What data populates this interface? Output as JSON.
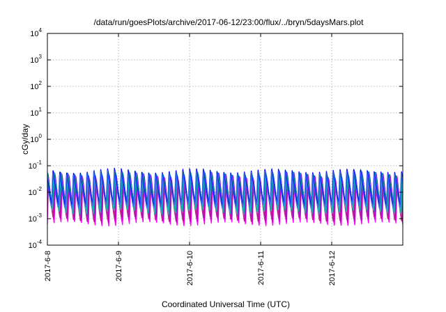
{
  "chart_data": {
    "type": "line",
    "title": "/data/run/goesPlots/archive/2017-06-12/23:00/flux/../bryn/5daysMars.plot",
    "xlabel": "Coordinated Universal Time (UTC)",
    "ylabel": "cGy/day",
    "y_scale": "log",
    "ylim_exponents": [
      -4,
      4
    ],
    "y_tick_exponents": [
      -4,
      -3,
      -2,
      -1,
      0,
      1,
      2,
      3,
      4
    ],
    "y_tick_base": "10",
    "x_tick_labels": [
      "2017-6-8",
      "2017-6-9",
      "2017-6-10",
      "2017-6-11",
      "2017-6-12"
    ],
    "x_tick_days": [
      0,
      1,
      2,
      3,
      4
    ],
    "xlim_days": [
      0,
      5
    ],
    "grid": true,
    "pattern": {
      "cycles_per_day": 10.4,
      "description_peak_low_by_series": true
    },
    "series": [
      {
        "color": "#ff00ff",
        "peak": 0.035,
        "low": 0.0006
      },
      {
        "color": "#cc00cc",
        "peak": 0.04,
        "low": 0.0008
      },
      {
        "color": "#9400d3",
        "peak": 0.045,
        "low": 0.001
      },
      {
        "color": "#7b2fbe",
        "peak": 0.05,
        "low": 0.0013
      },
      {
        "color": "#c0209a",
        "peak": 0.04,
        "low": 0.0009
      },
      {
        "color": "#008b8b",
        "peak": 0.055,
        "low": 0.002
      },
      {
        "color": "#20b2aa",
        "peak": 0.05,
        "low": 0.0017
      },
      {
        "color": "#00c0c0",
        "peak": 0.06,
        "low": 0.0025
      },
      {
        "color": "#1e90ff",
        "peak": 0.065,
        "low": 0.003
      },
      {
        "color": "#0000ff",
        "peak": 0.07,
        "low": 0.0035
      },
      {
        "color": "#4169e1",
        "peak": 0.06,
        "low": 0.0028
      }
    ]
  }
}
